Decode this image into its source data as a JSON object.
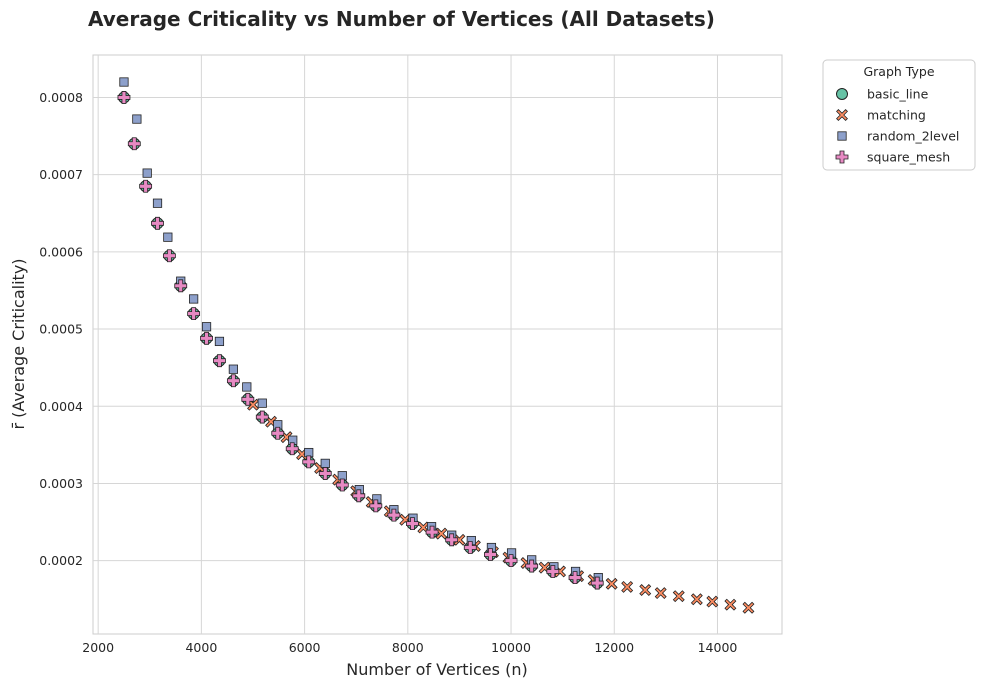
{
  "chart_data": {
    "type": "scatter",
    "title": "Average Criticality vs Number of Vertices (All Datasets)",
    "xlabel": "Number of Vertices (n)",
    "ylabel": "r̄ (Average Criticality)",
    "xlim": [
      1900,
      15250
    ],
    "ylim": [
      0.000105,
      0.000855
    ],
    "xticks": [
      2000,
      4000,
      6000,
      8000,
      10000,
      12000,
      14000
    ],
    "xtick_labels": [
      "2000",
      "4000",
      "6000",
      "8000",
      "10000",
      "12000",
      "14000"
    ],
    "yticks": [
      0.0002,
      0.0003,
      0.0004,
      0.0005,
      0.0006,
      0.0007,
      0.0008
    ],
    "ytick_labels": [
      "0.0002",
      "0.0003",
      "0.0004",
      "0.0005",
      "0.0006",
      "0.0007",
      "0.0008"
    ],
    "grid": true,
    "legend": {
      "title": "Graph Type",
      "placement": "outside-upper-right"
    },
    "series": [
      {
        "name": "basic_line",
        "marker": "circle",
        "color": "#66c2a5",
        "x": [
          2500,
          2700,
          2920,
          3150,
          3380,
          3600,
          3850,
          4100,
          4350,
          4620,
          4900,
          5180,
          5480,
          5760,
          6080,
          6400,
          6730,
          7050,
          7380,
          7730,
          8090,
          8470,
          8850,
          9210,
          9600,
          10000,
          10400,
          10810,
          11240,
          11670
        ],
        "y": [
          0.0008,
          0.00074,
          0.000685,
          0.000637,
          0.000595,
          0.000556,
          0.00052,
          0.000488,
          0.000459,
          0.000433,
          0.000409,
          0.000386,
          0.000365,
          0.000345,
          0.000328,
          0.000313,
          0.000298,
          0.000284,
          0.000271,
          0.000259,
          0.000248,
          0.000237,
          0.000227,
          0.000217,
          0.000208,
          0.0002,
          0.000193,
          0.000186,
          0.000178,
          0.000171
        ]
      },
      {
        "name": "matching",
        "marker": "X",
        "color": "#fc8d62",
        "x": [
          5000,
          5350,
          5650,
          5950,
          6300,
          6650,
          7000,
          7300,
          7650,
          7950,
          8300,
          8650,
          9000,
          9300,
          9650,
          9950,
          10300,
          10650,
          10950,
          11300,
          11600,
          11950,
          12250,
          12600,
          12900,
          13250,
          13600,
          13900,
          14250,
          14600
        ],
        "y": [
          0.000402,
          0.00038,
          0.00036,
          0.000338,
          0.00032,
          0.000305,
          0.00029,
          0.000276,
          0.000264,
          0.000253,
          0.000243,
          0.000235,
          0.000227,
          0.000219,
          0.000211,
          0.000204,
          0.000197,
          0.000191,
          0.000186,
          0.00018,
          0.000175,
          0.00017,
          0.000166,
          0.000162,
          0.000158,
          0.000154,
          0.00015,
          0.000147,
          0.000143,
          0.000139
        ]
      },
      {
        "name": "random_2level",
        "marker": "square",
        "color": "#8da0cb",
        "x": [
          2500,
          2750,
          2950,
          3150,
          3350,
          3600,
          3850,
          4100,
          4350,
          4620,
          4880,
          5180,
          5480,
          5770,
          6080,
          6400,
          6730,
          7060,
          7400,
          7730,
          8100,
          8460,
          8850,
          9230,
          9620,
          10010,
          10400,
          10830,
          11250,
          11690
        ],
        "y": [
          0.00082,
          0.000772,
          0.000702,
          0.000663,
          0.000619,
          0.000562,
          0.000539,
          0.000503,
          0.000484,
          0.000448,
          0.000425,
          0.000404,
          0.000376,
          0.000356,
          0.00034,
          0.000326,
          0.00031,
          0.000292,
          0.00028,
          0.000266,
          0.000255,
          0.000244,
          0.000233,
          0.000226,
          0.000217,
          0.00021,
          0.000201,
          0.000192,
          0.000186,
          0.000178
        ]
      },
      {
        "name": "square_mesh",
        "marker": "plus",
        "color": "#e78ac3",
        "x": [
          2500,
          2700,
          2920,
          3150,
          3380,
          3600,
          3850,
          4100,
          4350,
          4620,
          4900,
          5180,
          5480,
          5760,
          6080,
          6400,
          6730,
          7050,
          7380,
          7730,
          8090,
          8470,
          8850,
          9210,
          9600,
          10000,
          10400,
          10810,
          11240,
          11670
        ],
        "y": [
          0.0008,
          0.00074,
          0.000685,
          0.000637,
          0.000595,
          0.000556,
          0.00052,
          0.000488,
          0.000459,
          0.000433,
          0.000409,
          0.000386,
          0.000365,
          0.000345,
          0.000328,
          0.000313,
          0.000298,
          0.000284,
          0.000271,
          0.000259,
          0.000248,
          0.000237,
          0.000227,
          0.000217,
          0.000208,
          0.0002,
          0.000193,
          0.000186,
          0.000178,
          0.000171
        ]
      }
    ]
  }
}
